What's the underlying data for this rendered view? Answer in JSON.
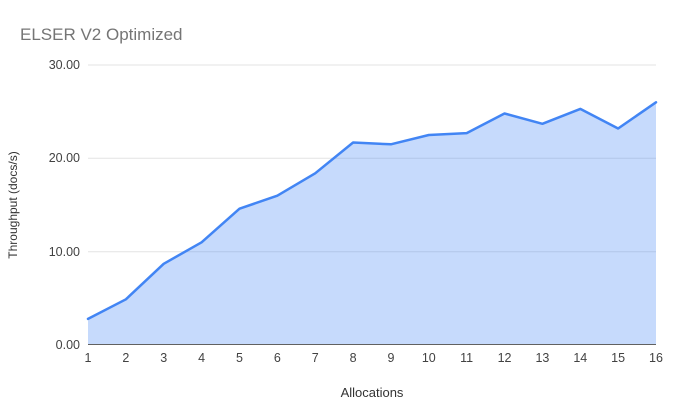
{
  "page": {
    "background": "#ffffff"
  },
  "chart_data": {
    "type": "area",
    "title": "ELSER V2 Optimized",
    "xlabel": "Allocations",
    "ylabel": "Throughput (docs/s)",
    "x": [
      1,
      2,
      3,
      4,
      5,
      6,
      7,
      8,
      9,
      10,
      11,
      12,
      13,
      14,
      15,
      16
    ],
    "values": [
      2.8,
      4.9,
      8.7,
      11.0,
      14.6,
      16.0,
      18.4,
      21.7,
      21.5,
      22.5,
      22.7,
      24.8,
      23.7,
      25.3,
      23.2,
      26.0
    ],
    "series_name": "Throughput",
    "xlim": [
      1,
      16
    ],
    "ylim": [
      0,
      30
    ],
    "xticks": [
      "1",
      "2",
      "3",
      "4",
      "5",
      "6",
      "7",
      "8",
      "9",
      "10",
      "11",
      "12",
      "13",
      "14",
      "15",
      "16"
    ],
    "yticks": [
      {
        "label": "0.00",
        "value": 0
      },
      {
        "label": "10.00",
        "value": 10
      },
      {
        "label": "20.00",
        "value": 20
      },
      {
        "label": "30.00",
        "value": 30
      }
    ],
    "grid": "horizontal",
    "legend": "none",
    "colors": {
      "line": "#4285F4",
      "fill": "#4285F4",
      "fill_opacity": 0.3,
      "gridline": "#E3E3E3",
      "axis_line": "#616161",
      "title": "#757575",
      "tick_label": "#424242",
      "axis_title": "#333333",
      "background": "#FFFFFF"
    }
  }
}
